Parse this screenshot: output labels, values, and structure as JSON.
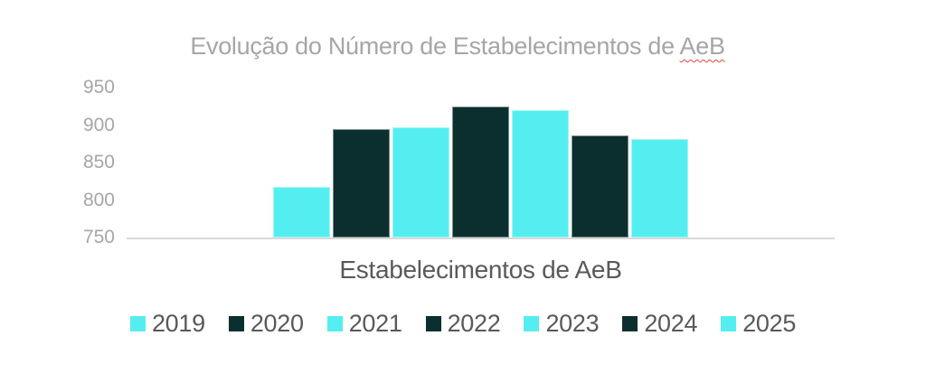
{
  "chart_data": {
    "type": "bar",
    "title": {
      "prefix": "Evolução do Número de Estabelecimentos de ",
      "flagged_word": "AeB"
    },
    "x_axis_title": "Estabelecimentos de AeB",
    "categories": [
      "2019",
      "2020",
      "2021",
      "2022",
      "2023",
      "2024",
      "2025"
    ],
    "series": [
      {
        "name": "2019",
        "value": 817,
        "color": "#55EEF0"
      },
      {
        "name": "2020",
        "value": 895,
        "color": "#0B2F2E"
      },
      {
        "name": "2021",
        "value": 897,
        "color": "#55EEF0"
      },
      {
        "name": "2022",
        "value": 925,
        "color": "#0B2F2E"
      },
      {
        "name": "2023",
        "value": 920,
        "color": "#55EEF0"
      },
      {
        "name": "2024",
        "value": 886,
        "color": "#0B2F2E"
      },
      {
        "name": "2025",
        "value": 881,
        "color": "#55EEF0"
      }
    ],
    "y_axis": {
      "min": 750,
      "max": 950,
      "ticks": [
        750,
        800,
        850,
        900,
        950
      ]
    },
    "xlabel": "Estabelecimentos de AeB",
    "ylabel": "",
    "grid": false,
    "legend_position": "bottom",
    "colors": {
      "bar_cyan": "#55EEF0",
      "bar_dark_teal": "#0B2F2E",
      "axis_line": "#D9D9D9",
      "tick_label": "#A6A6A6",
      "title_text": "#A6A6A6",
      "axis_title_text": "#5A5A5A",
      "legend_text": "#595959",
      "spellcheck_underline": "#E8453C",
      "background": "#FFFFFF"
    }
  }
}
